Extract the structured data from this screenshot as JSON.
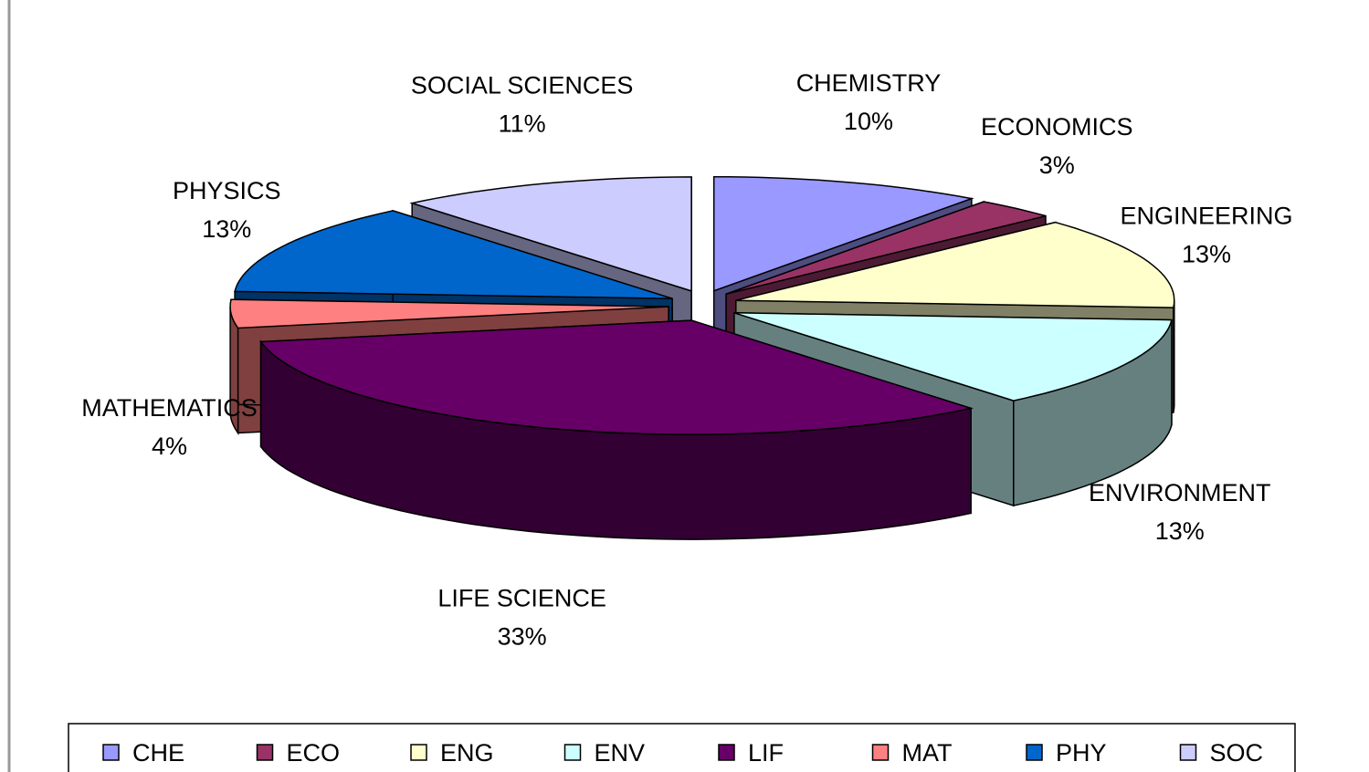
{
  "chart_data": {
    "type": "pie3d",
    "categories": [
      "CHEMISTRY",
      "ECONOMICS",
      "ENGINEERING",
      "ENVIRONMENT",
      "LIFE SCIENCE",
      "MATHEMATICS",
      "PHYSICS",
      "SOCIAL SCIENCES"
    ],
    "values": [
      10,
      3,
      13,
      13,
      33,
      4,
      13,
      11
    ],
    "value_labels": [
      "10%",
      "3%",
      "13%",
      "13%",
      "33%",
      "4%",
      "13%",
      "11%"
    ],
    "legend": [
      "CHE",
      "ECO",
      "ENG",
      "ENV",
      "LIF",
      "MAT",
      "PHY",
      "SOC"
    ],
    "colors": [
      "#9999ff",
      "#993366",
      "#ffffcc",
      "#ccffff",
      "#660066",
      "#ff8080",
      "#0066cc",
      "#ccccff"
    ]
  }
}
